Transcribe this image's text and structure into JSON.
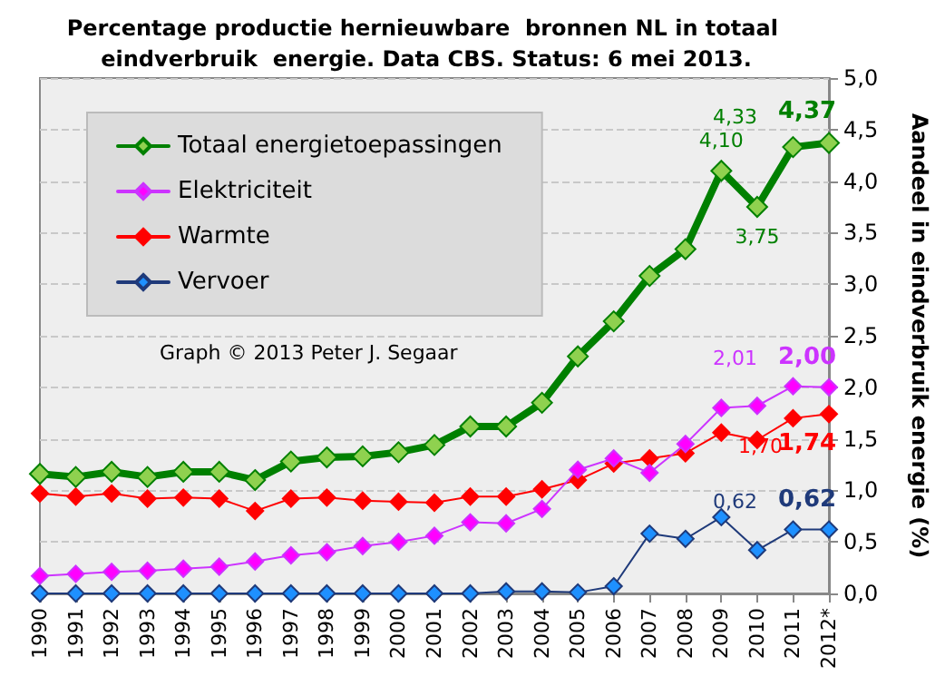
{
  "chart_data": {
    "type": "line",
    "title": "Percentage productie hernieuwbare  bronnen NL in totaal eindverbruik  energie. Data CBS. Status: 6 mei 2013.",
    "ylabel": "Aandeel in eindverbruik energie (%)",
    "annotations": [
      "Graph © 2013 Peter J. Segaar"
    ],
    "categories": [
      "1990",
      "1991",
      "1992",
      "1993",
      "1994",
      "1995",
      "1996",
      "1997",
      "1998",
      "1999",
      "2000",
      "2001",
      "2002",
      "2003",
      "2004",
      "2005",
      "2006",
      "2007",
      "2008",
      "2009",
      "2010",
      "2011",
      "2012*"
    ],
    "series": [
      {
        "name": "Totaal energietoepassingen",
        "color": "#8fd14f",
        "values": [
          1.16,
          1.13,
          1.18,
          1.13,
          1.18,
          1.18,
          1.1,
          1.28,
          1.32,
          1.33,
          1.37,
          1.44,
          1.62,
          1.62,
          1.85,
          2.3,
          2.64,
          3.08,
          3.34,
          4.1,
          3.75,
          4.33,
          4.37
        ],
        "value_labels": [
          null,
          null,
          null,
          null,
          null,
          null,
          null,
          null,
          null,
          null,
          null,
          null,
          null,
          null,
          null,
          null,
          null,
          null,
          null,
          "4,10",
          "3,75",
          "4,33",
          "4,37"
        ]
      },
      {
        "name": "Elektriciteit",
        "color": "#ff00ff",
        "values": [
          0.17,
          0.19,
          0.21,
          0.22,
          0.24,
          0.26,
          0.31,
          0.37,
          0.4,
          0.46,
          0.5,
          0.56,
          0.69,
          0.68,
          0.82,
          1.2,
          1.31,
          1.17,
          1.45,
          1.8,
          1.82,
          2.01,
          2.0
        ],
        "value_labels": [
          null,
          null,
          null,
          null,
          null,
          null,
          null,
          null,
          null,
          null,
          null,
          null,
          null,
          null,
          null,
          null,
          null,
          null,
          null,
          null,
          null,
          "2,01",
          "2,00"
        ]
      },
      {
        "name": "Warmte",
        "color": "#ff0000",
        "values": [
          0.97,
          0.94,
          0.97,
          0.92,
          0.93,
          0.92,
          0.8,
          0.92,
          0.93,
          0.9,
          0.89,
          0.88,
          0.94,
          0.94,
          1.01,
          1.1,
          1.26,
          1.31,
          1.36,
          1.56,
          1.49,
          1.7,
          1.74
        ],
        "value_labels": [
          null,
          null,
          null,
          null,
          null,
          null,
          null,
          null,
          null,
          null,
          null,
          null,
          null,
          null,
          null,
          null,
          null,
          null,
          null,
          null,
          null,
          "1,70",
          "1,74"
        ]
      },
      {
        "name": "Vervoer",
        "color": "#1e90ff",
        "values": [
          0,
          0,
          0,
          0,
          0,
          0,
          0,
          0,
          0,
          0,
          0,
          0,
          0,
          0.02,
          0.02,
          0.01,
          0.07,
          0.58,
          0.53,
          0.74,
          0.42,
          0.62,
          0.62
        ],
        "value_labels": [
          null,
          null,
          null,
          null,
          null,
          null,
          null,
          null,
          null,
          null,
          null,
          null,
          null,
          null,
          null,
          null,
          null,
          null,
          null,
          null,
          null,
          "0,62",
          "0,62"
        ]
      }
    ],
    "ylim": [
      0,
      5
    ],
    "yticks": [
      {
        "value": 0,
        "label": "0,0"
      },
      {
        "value": 0.5,
        "label": "0,5"
      },
      {
        "value": 1,
        "label": "1,0"
      },
      {
        "value": 1.5,
        "label": "1,5"
      },
      {
        "value": 2,
        "label": "2,0"
      },
      {
        "value": 2.5,
        "label": "2,5"
      },
      {
        "value": 3,
        "label": "3,0"
      },
      {
        "value": 3.5,
        "label": "3,5"
      },
      {
        "value": 4,
        "label": "4,0"
      },
      {
        "value": 4.5,
        "label": "4,5"
      },
      {
        "value": 5,
        "label": "5,0"
      }
    ],
    "grid": "y",
    "legend": "top left",
    "marker": "diamond",
    "line_style": "solid"
  }
}
